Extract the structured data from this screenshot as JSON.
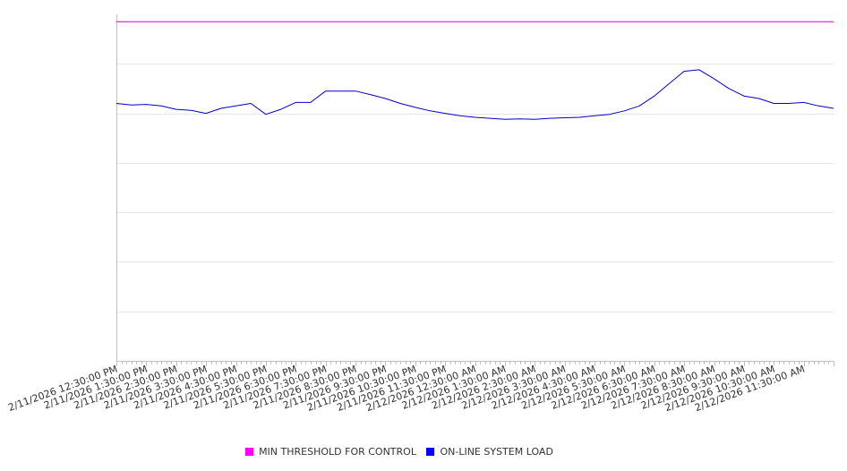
{
  "chart_data": {
    "type": "line",
    "title": "",
    "xlabel": "",
    "ylabel": "",
    "y_tick_labels_shown": false,
    "grid": "horizontal",
    "legend_placement": "bottom",
    "x_range": [
      "2/11/2026 12:30:00 PM",
      "2/12/2026 12:30:00 PM"
    ],
    "ylim": [
      0,
      7
    ],
    "x_tick_labels": [
      "2/11/2026 12:30:00 PM",
      "2/11/2026 1:30:00 PM",
      "2/11/2026 2:30:00 PM",
      "2/11/2026 3:30:00 PM",
      "2/11/2026 4:30:00 PM",
      "2/11/2026 5:30:00 PM",
      "2/11/2026 6:30:00 PM",
      "2/11/2026 7:30:00 PM",
      "2/11/2026 8:30:00 PM",
      "2/11/2026 9:30:00 PM",
      "2/11/2026 10:30:00 PM",
      "2/11/2026 11:30:00 PM",
      "2/12/2026 12:30:00 AM",
      "2/12/2026 1:30:00 AM",
      "2/12/2026 2:30:00 AM",
      "2/12/2026 3:30:00 AM",
      "2/12/2026 4:30:00 AM",
      "2/12/2026 5:30:00 AM",
      "2/12/2026 6:30:00 AM",
      "2/12/2026 7:30:00 AM",
      "2/12/2026 8:30:00 AM",
      "2/12/2026 9:30:00 AM",
      "2/12/2026 10:30:00 AM",
      "2/12/2026 11:30:00 AM"
    ],
    "x": [
      "2/11/2026 12:30:00 PM",
      "2/11/2026 1:00:00 PM",
      "2/11/2026 1:30:00 PM",
      "2/11/2026 2:00:00 PM",
      "2/11/2026 2:30:00 PM",
      "2/11/2026 3:00:00 PM",
      "2/11/2026 3:30:00 PM",
      "2/11/2026 4:00:00 PM",
      "2/11/2026 4:30:00 PM",
      "2/11/2026 5:00:00 PM",
      "2/11/2026 5:30:00 PM",
      "2/11/2026 6:00:00 PM",
      "2/11/2026 6:30:00 PM",
      "2/11/2026 7:00:00 PM",
      "2/11/2026 7:30:00 PM",
      "2/11/2026 8:00:00 PM",
      "2/11/2026 8:30:00 PM",
      "2/11/2026 9:00:00 PM",
      "2/11/2026 9:30:00 PM",
      "2/11/2026 10:00:00 PM",
      "2/11/2026 10:30:00 PM",
      "2/11/2026 11:00:00 PM",
      "2/11/2026 11:30:00 PM",
      "2/12/2026 12:00:00 AM",
      "2/12/2026 12:30:00 AM",
      "2/12/2026 1:00:00 AM",
      "2/12/2026 1:30:00 AM",
      "2/12/2026 2:00:00 AM",
      "2/12/2026 2:30:00 AM",
      "2/12/2026 3:00:00 AM",
      "2/12/2026 3:30:00 AM",
      "2/12/2026 4:00:00 AM",
      "2/12/2026 4:30:00 AM",
      "2/12/2026 5:00:00 AM",
      "2/12/2026 5:30:00 AM",
      "2/12/2026 6:00:00 AM",
      "2/12/2026 6:30:00 AM",
      "2/12/2026 7:00:00 AM",
      "2/12/2026 7:30:00 AM",
      "2/12/2026 8:00:00 AM",
      "2/12/2026 8:30:00 AM",
      "2/12/2026 9:00:00 AM",
      "2/12/2026 9:30:00 AM",
      "2/12/2026 10:00:00 AM",
      "2/12/2026 10:30:00 AM",
      "2/12/2026 11:00:00 AM",
      "2/12/2026 11:30:00 AM",
      "2/12/2026 12:00:00 PM",
      "2/12/2026 12:30:00 PM"
    ],
    "series": [
      {
        "name": "MIN THRESHOLD FOR CONTROL",
        "color": "#cc00cc",
        "values": [
          6.85,
          6.85,
          6.85,
          6.85,
          6.85,
          6.85,
          6.85,
          6.85,
          6.85,
          6.85,
          6.85,
          6.85,
          6.85,
          6.85,
          6.85,
          6.85,
          6.85,
          6.85,
          6.85,
          6.85,
          6.85,
          6.85,
          6.85,
          6.85,
          6.85,
          6.85,
          6.85,
          6.85,
          6.85,
          6.85,
          6.85,
          6.85,
          6.85,
          6.85,
          6.85,
          6.85,
          6.85,
          6.85,
          6.85,
          6.85,
          6.85,
          6.85,
          6.85,
          6.85,
          6.85,
          6.85,
          6.85,
          6.85,
          6.85
        ]
      },
      {
        "name": "ON-LINE SYSTEM LOAD",
        "color": "#0000cc",
        "values": [
          5.2,
          5.17,
          5.18,
          5.15,
          5.08,
          5.06,
          5.0,
          5.1,
          5.15,
          5.2,
          4.98,
          5.08,
          5.22,
          5.22,
          5.45,
          5.45,
          5.45,
          5.38,
          5.3,
          5.2,
          5.12,
          5.05,
          5.0,
          4.95,
          4.92,
          4.9,
          4.88,
          4.89,
          4.88,
          4.9,
          4.91,
          4.92,
          4.95,
          4.98,
          5.05,
          5.15,
          5.35,
          5.6,
          5.85,
          5.88,
          5.7,
          5.5,
          5.35,
          5.3,
          5.2,
          5.2,
          5.22,
          5.15,
          5.1
        ]
      }
    ]
  },
  "legend": [
    {
      "label": "MIN THRESHOLD FOR CONTROL",
      "color": "#ff00ff"
    },
    {
      "label": "ON-LINE SYSTEM LOAD",
      "color": "#0000ff"
    }
  ]
}
